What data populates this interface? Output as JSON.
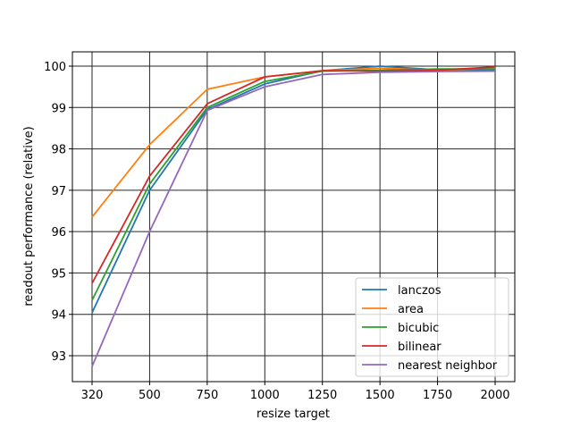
{
  "chart_data": {
    "type": "line",
    "title": "",
    "xlabel": "resize target",
    "ylabel": "readout performance (relative)",
    "categories": [
      "320",
      "500",
      "750",
      "1000",
      "1250",
      "1500",
      "1750",
      "2000"
    ],
    "x_positions": "evenly spaced (categorical)",
    "ylim": [
      92.4,
      100.35
    ],
    "yticks": [
      93,
      94,
      95,
      96,
      97,
      98,
      99,
      100
    ],
    "grid": true,
    "legend_position": "lower right",
    "series": [
      {
        "name": "lanczos",
        "color": "#1f77b4",
        "values": [
          94.04,
          97.0,
          98.95,
          99.57,
          99.89,
          100.0,
          99.91,
          99.9
        ]
      },
      {
        "name": "area",
        "color": "#ff7f0e",
        "values": [
          96.35,
          98.1,
          99.44,
          99.74,
          99.89,
          99.95,
          99.9,
          99.95
        ]
      },
      {
        "name": "bicubic",
        "color": "#2ca02c",
        "values": [
          94.34,
          97.15,
          99.0,
          99.63,
          99.88,
          99.9,
          99.93,
          99.93
        ]
      },
      {
        "name": "bilinear",
        "color": "#d62728",
        "values": [
          94.75,
          97.34,
          99.09,
          99.74,
          99.89,
          99.88,
          99.9,
          99.98
        ]
      },
      {
        "name": "nearest neighbor",
        "color": "#9467bd",
        "values": [
          92.74,
          96.0,
          98.93,
          99.5,
          99.8,
          99.85,
          99.87,
          99.88
        ]
      }
    ]
  }
}
